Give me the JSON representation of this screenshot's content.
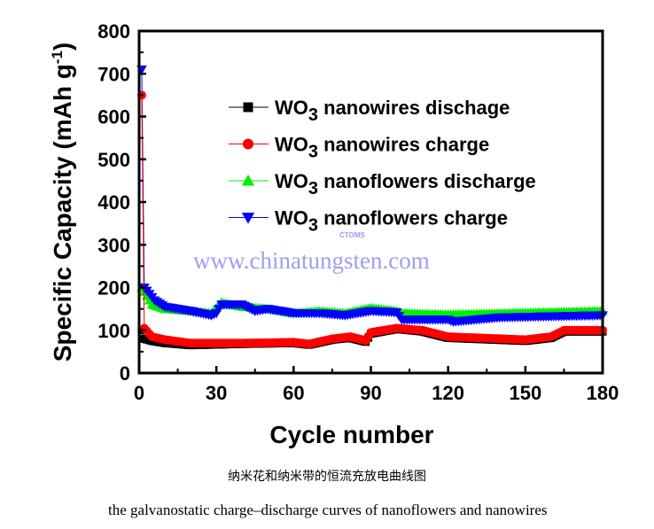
{
  "chart_data": {
    "type": "scatter",
    "xlabel": "Cycle number",
    "ylabel": "Specific Capacity (mAh g",
    "ylabel_sup": "-1",
    "ylabel_end": ")",
    "xlim": [
      0,
      180
    ],
    "ylim": [
      0,
      800
    ],
    "xticks": [
      "0",
      "30",
      "60",
      "90",
      "120",
      "150",
      "180"
    ],
    "yticks": [
      "0",
      "100",
      "200",
      "300",
      "400",
      "500",
      "600",
      "700",
      "800"
    ],
    "legend_position": "top-right",
    "series": [
      {
        "name": "WO3 nanowires dischage",
        "prefix": "WO",
        "sub": "3",
        "rest": " nanowires dischage",
        "color": "#000000",
        "marker": "square",
        "points": [
          [
            1,
            100
          ],
          [
            2,
            80
          ],
          [
            5,
            75
          ],
          [
            10,
            70
          ],
          [
            20,
            65
          ],
          [
            40,
            68
          ],
          [
            60,
            70
          ],
          [
            66,
            66
          ],
          [
            75,
            78
          ],
          [
            82,
            82
          ],
          [
            88,
            73
          ],
          [
            90,
            92
          ],
          [
            100,
            103
          ],
          [
            110,
            97
          ],
          [
            120,
            82
          ],
          [
            150,
            75
          ],
          [
            160,
            82
          ],
          [
            165,
            97
          ],
          [
            180,
            97
          ]
        ]
      },
      {
        "name": "WO3 nanowires charge",
        "prefix": "WO",
        "sub": "3",
        "rest": " nanowires charge",
        "color": "#ff0000",
        "marker": "circle",
        "points": [
          [
            1,
            650
          ],
          [
            2,
            105
          ],
          [
            5,
            85
          ],
          [
            10,
            78
          ],
          [
            20,
            70
          ],
          [
            40,
            70
          ],
          [
            60,
            72
          ],
          [
            66,
            68
          ],
          [
            75,
            80
          ],
          [
            82,
            85
          ],
          [
            88,
            76
          ],
          [
            90,
            95
          ],
          [
            100,
            105
          ],
          [
            110,
            100
          ],
          [
            120,
            85
          ],
          [
            150,
            78
          ],
          [
            160,
            85
          ],
          [
            165,
            100
          ],
          [
            180,
            100
          ]
        ]
      },
      {
        "name": "WO3 nanoflowers discharge",
        "prefix": "WO",
        "sub": "3",
        "rest": " nanoflowers discharge",
        "color": "#00ee00",
        "marker": "triangle-up",
        "points": [
          [
            1,
            200
          ],
          [
            5,
            160
          ],
          [
            10,
            150
          ],
          [
            20,
            145
          ],
          [
            28,
            140
          ],
          [
            32,
            165
          ],
          [
            40,
            155
          ],
          [
            50,
            150
          ],
          [
            60,
            140
          ],
          [
            70,
            145
          ],
          [
            80,
            140
          ],
          [
            90,
            152
          ],
          [
            100,
            145
          ],
          [
            102,
            140
          ],
          [
            120,
            137
          ],
          [
            180,
            145
          ]
        ]
      },
      {
        "name": "WO3 nanoflowers charge",
        "prefix": "WO",
        "sub": "3",
        "rest": " nanoflowers charge",
        "color": "#0000ff",
        "marker": "triangle-down",
        "points": [
          [
            1,
            710
          ],
          [
            2,
            200
          ],
          [
            6,
            170
          ],
          [
            10,
            155
          ],
          [
            20,
            145
          ],
          [
            28,
            135
          ],
          [
            30,
            140
          ],
          [
            32,
            160
          ],
          [
            40,
            160
          ],
          [
            45,
            145
          ],
          [
            50,
            150
          ],
          [
            60,
            140
          ],
          [
            70,
            140
          ],
          [
            80,
            135
          ],
          [
            85,
            140
          ],
          [
            90,
            145
          ],
          [
            100,
            142
          ],
          [
            102,
            125
          ],
          [
            120,
            125
          ],
          [
            122,
            120
          ],
          [
            140,
            130
          ],
          [
            180,
            135
          ]
        ]
      }
    ]
  },
  "watermark": {
    "url": "www.chinatungsten.com",
    "logo": "CTOMS"
  },
  "caption_zh": "纳米花和纳米带的恒流充放电曲线图",
  "caption_en": "the galvanostatic charge–discharge curves of nanoflowers and nanowires"
}
